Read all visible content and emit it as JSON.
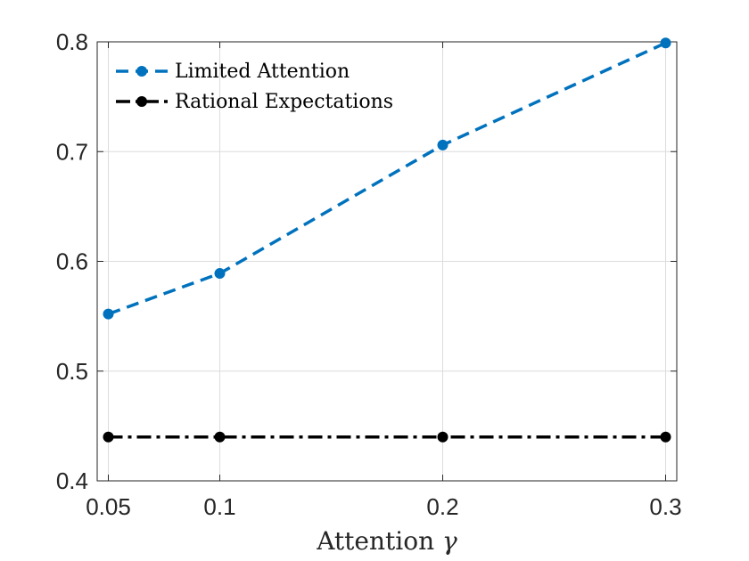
{
  "chart_data": {
    "type": "line",
    "title": "",
    "xlabel_text": "Attention",
    "xlabel_symbol": "γ",
    "ylabel": "",
    "x": [
      0.05,
      0.1,
      0.2,
      0.3
    ],
    "xlim": [
      0.045,
      0.305
    ],
    "ylim": [
      0.4,
      0.8
    ],
    "xticks": [
      0.05,
      0.1,
      0.2,
      0.3
    ],
    "xtick_labels": [
      "0.05",
      "0.1",
      "0.2",
      "0.3"
    ],
    "yticks": [
      0.4,
      0.5,
      0.6,
      0.7,
      0.8
    ],
    "ytick_labels": [
      "0.4",
      "0.5",
      "0.6",
      "0.7",
      "0.8"
    ],
    "grid": true,
    "legend_position": "top-left",
    "series": [
      {
        "name": "Limited Attention",
        "values": [
          0.552,
          0.589,
          0.706,
          0.799
        ],
        "color": "#0072BD",
        "line_style": "dashed",
        "marker": "circle"
      },
      {
        "name": "Rational Expectations",
        "values": [
          0.44,
          0.44,
          0.44,
          0.44
        ],
        "color": "#000000",
        "line_style": "dash-dot",
        "marker": "circle"
      }
    ]
  }
}
